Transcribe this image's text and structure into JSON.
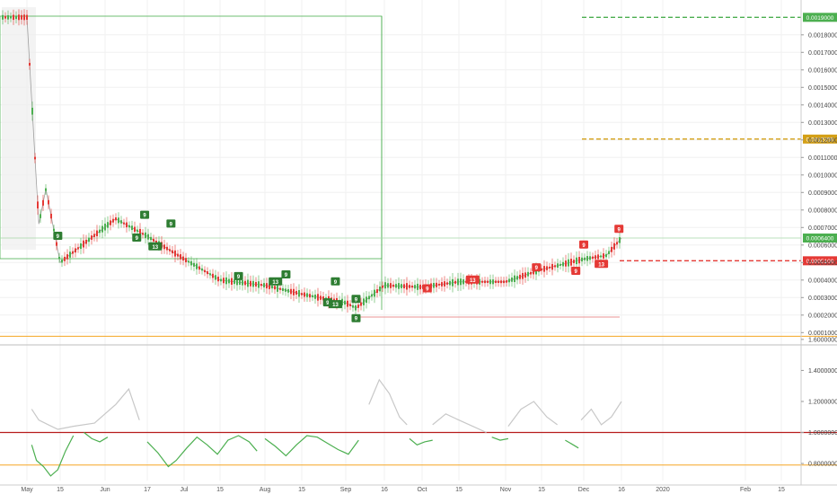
{
  "chart_data": [
    {
      "type": "candlestick",
      "title": "",
      "y_axis": {
        "range": [
          4e-05,
          0.00202
        ],
        "tick_labels": [
          "0.0001000",
          "0.0002000",
          "0.0003000",
          "0.0004000",
          "0.0005000",
          "0.0006000",
          "0.0007000",
          "0.0008000",
          "0.0009000",
          "0.0010000",
          "0.0011000",
          "0.0012000",
          "0.0013000",
          "0.0014000",
          "0.0015000",
          "0.0016000",
          "0.0017000",
          "0.0018000"
        ],
        "side": "right"
      },
      "x_axis": {
        "tick_labels": [
          "May",
          "15",
          "Jun",
          "17",
          "Jul",
          "15",
          "Aug",
          "15",
          "Sep",
          "16",
          "Oct",
          "15",
          "Nov",
          "15",
          "Dec",
          "16",
          "2020",
          "Feb",
          "15"
        ]
      },
      "price_points": [
        {
          "x": "May 1",
          "y": 0.0019
        },
        {
          "x": "May 6",
          "y": 0.00072
        },
        {
          "x": "May 9",
          "y": 0.00092
        },
        {
          "x": "May 15",
          "y": 0.0005
        },
        {
          "x": "May 25",
          "y": 0.00062
        },
        {
          "x": "Jun 5",
          "y": 0.00075
        },
        {
          "x": "Jun 17",
          "y": 0.00065
        },
        {
          "x": "Jul 1",
          "y": 0.00052
        },
        {
          "x": "Jul 15",
          "y": 0.0004
        },
        {
          "x": "Aug 1",
          "y": 0.00037
        },
        {
          "x": "Aug 15",
          "y": 0.00032
        },
        {
          "x": "Sep 1",
          "y": 0.00027
        },
        {
          "x": "Sep 5",
          "y": 0.00024
        },
        {
          "x": "Sep 16",
          "y": 0.00037
        },
        {
          "x": "Oct 1",
          "y": 0.00036
        },
        {
          "x": "Oct 15",
          "y": 0.00039
        },
        {
          "x": "Nov 1",
          "y": 0.00039
        },
        {
          "x": "Nov 15",
          "y": 0.00046
        },
        {
          "x": "Dec 1",
          "y": 0.00052
        },
        {
          "x": "Dec 10",
          "y": 0.00054
        },
        {
          "x": "Dec 16",
          "y": 0.00064
        }
      ],
      "horizontal_levels": [
        {
          "label": "0.0019000",
          "value": 0.0019,
          "color": "#4caf50",
          "style": "dashed"
        },
        {
          "label": "0.0012050",
          "value": 0.001205,
          "color": "#d4a017",
          "style": "dashed"
        },
        {
          "label": "0.0006400",
          "value": 0.00064,
          "color": "#4caf50",
          "style": "solid"
        },
        {
          "label": "0.0005100",
          "value": 0.00051,
          "color": "#e53935",
          "style": "dashed"
        }
      ],
      "td_setup_labels": [
        {
          "text": "9",
          "color": "green",
          "x": "May 14",
          "y": 0.00065
        },
        {
          "text": "9",
          "color": "green",
          "x": "Jun 16",
          "y": 0.00077
        },
        {
          "text": "9",
          "color": "green",
          "x": "Jun 13",
          "y": 0.00064
        },
        {
          "text": "9",
          "color": "green",
          "x": "Jun 26",
          "y": 0.00072
        },
        {
          "text": "13",
          "color": "green",
          "x": "Jun 20",
          "y": 0.00059
        },
        {
          "text": "9",
          "color": "green",
          "x": "Jul 22",
          "y": 0.00042
        },
        {
          "text": "13",
          "color": "green",
          "x": "Aug 5",
          "y": 0.00039
        },
        {
          "text": "9",
          "color": "green",
          "x": "Aug 9",
          "y": 0.00043
        },
        {
          "text": "9",
          "color": "green",
          "x": "Aug 25",
          "y": 0.00027
        },
        {
          "text": "9",
          "color": "green",
          "x": "Aug 28",
          "y": 0.00039
        },
        {
          "text": "13",
          "color": "green",
          "x": "Aug 28",
          "y": 0.00026
        },
        {
          "text": "9",
          "color": "green",
          "x": "Sep 5",
          "y": 0.00029
        },
        {
          "text": "9",
          "color": "green",
          "x": "Sep 5",
          "y": 0.00018
        },
        {
          "text": "9",
          "color": "red",
          "x": "Oct 3",
          "y": 0.00035
        },
        {
          "text": "13",
          "color": "red",
          "x": "Oct 20",
          "y": 0.0004
        },
        {
          "text": "9",
          "color": "red",
          "x": "Nov 13",
          "y": 0.00047
        },
        {
          "text": "9",
          "color": "red",
          "x": "Dec 1",
          "y": 0.0006
        },
        {
          "text": "9",
          "color": "red",
          "x": "Nov 28",
          "y": 0.00045
        },
        {
          "text": "13",
          "color": "red",
          "x": "Dec 8",
          "y": 0.00049
        },
        {
          "text": "9",
          "color": "red",
          "x": "Dec 15",
          "y": 0.00069
        }
      ]
    },
    {
      "type": "line",
      "title": "",
      "y_axis": {
        "range": [
          0.6,
          1.75
        ],
        "tick_labels": [
          "0.8000000",
          "1.0000000",
          "1.2000000",
          "1.4000000",
          "1.6000000"
        ]
      },
      "horizontal_levels": [
        {
          "value": 1.62,
          "color": "#f5a623"
        },
        {
          "value": 1.0,
          "color": "#b71c1c"
        },
        {
          "value": 0.79,
          "color": "#f5a623"
        }
      ],
      "series": [
        {
          "segment": 1,
          "color": "#4caf50",
          "x": [
            "May 3",
            "May 5",
            "May 8",
            "May 11",
            "May 14",
            "May 17",
            "May 20"
          ],
          "y": [
            0.92,
            0.82,
            0.78,
            0.72,
            0.76,
            0.88,
            0.98
          ]
        },
        {
          "segment": 2,
          "color": "#4caf50",
          "x": [
            "May 24",
            "May 27",
            "May 30",
            "Jun 2"
          ],
          "y": [
            1.0,
            0.96,
            0.94,
            0.97
          ]
        },
        {
          "segment": 3,
          "color": "#4caf50",
          "x": [
            "Jun 17",
            "Jun 21",
            "Jun 25",
            "Jun 28",
            "Jul 2",
            "Jul 6",
            "Jul 10",
            "Jul 14",
            "Jul 18",
            "Jul 22",
            "Jul 26",
            "Jul 29"
          ],
          "y": [
            0.94,
            0.87,
            0.78,
            0.82,
            0.9,
            0.97,
            0.92,
            0.86,
            0.95,
            0.98,
            0.94,
            0.88
          ]
        },
        {
          "segment": 4,
          "color": "#4caf50",
          "x": [
            "Aug 1",
            "Aug 5",
            "Aug 9",
            "Aug 13",
            "Aug 17",
            "Aug 21",
            "Aug 25",
            "Aug 29",
            "Sep 2",
            "Sep 6"
          ],
          "y": [
            0.96,
            0.91,
            0.85,
            0.92,
            0.98,
            0.97,
            0.93,
            0.89,
            0.86,
            0.95
          ]
        },
        {
          "segment": 5,
          "color": "#4caf50",
          "x": [
            "Sep 26",
            "Sep 29",
            "Oct 2",
            "Oct 5"
          ],
          "y": [
            0.96,
            0.92,
            0.94,
            0.95
          ]
        },
        {
          "segment": 6,
          "color": "#4caf50",
          "x": [
            "Oct 27",
            "Oct 30",
            "Nov 2"
          ],
          "y": [
            0.97,
            0.95,
            0.96
          ]
        },
        {
          "segment": 7,
          "color": "#4caf50",
          "x": [
            "Nov 24",
            "Nov 27",
            "Nov 29"
          ],
          "y": [
            0.95,
            0.92,
            0.9
          ]
        },
        {
          "segment": 8,
          "color": "#c8c8c8",
          "x": [
            "May 3",
            "May 6",
            "May 10",
            "May 14",
            "May 20",
            "May 28",
            "Jun 5",
            "Jun 10",
            "Jun 14"
          ],
          "y": [
            1.15,
            1.08,
            1.05,
            1.02,
            1.04,
            1.06,
            1.18,
            1.28,
            1.08
          ]
        },
        {
          "segment": 9,
          "color": "#c8c8c8",
          "x": [
            "Sep 10",
            "Sep 14",
            "Sep 18",
            "Sep 22",
            "Sep 25"
          ],
          "y": [
            1.18,
            1.34,
            1.25,
            1.1,
            1.05
          ]
        },
        {
          "segment": 10,
          "color": "#c8c8c8",
          "x": [
            "Oct 5",
            "Oct 10",
            "Oct 15",
            "Oct 20",
            "Oct 25"
          ],
          "y": [
            1.05,
            1.12,
            1.08,
            1.04,
            1.0
          ]
        },
        {
          "segment": 11,
          "color": "#c8c8c8",
          "x": [
            "Nov 2",
            "Nov 7",
            "Nov 12",
            "Nov 17",
            "Nov 21"
          ],
          "y": [
            1.04,
            1.15,
            1.2,
            1.1,
            1.05
          ]
        },
        {
          "segment": 12,
          "color": "#c8c8c8",
          "x": [
            "Nov 30",
            "Dec 4",
            "Dec 8",
            "Dec 12",
            "Dec 16"
          ],
          "y": [
            1.08,
            1.15,
            1.05,
            1.1,
            1.2
          ]
        }
      ]
    }
  ]
}
